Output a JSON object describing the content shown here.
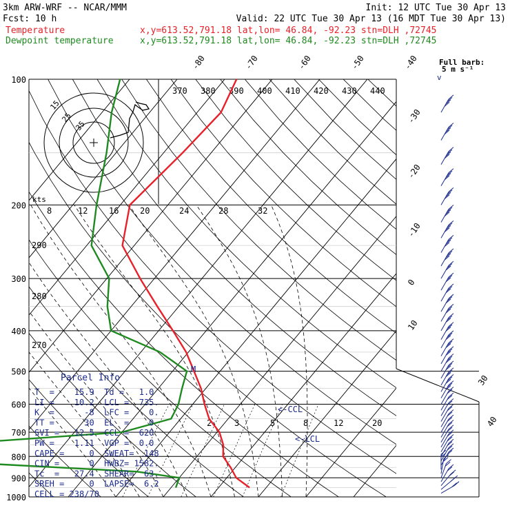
{
  "header": {
    "model": "3km ARW-WRF -- NCAR/MMM",
    "init": "Init: 12 UTC Tue 30 Apr 13",
    "fcst": "Fcst:   10 h",
    "valid": "Valid: 22 UTC Tue 30 Apr 13 (16 MDT Tue 30 Apr 13)",
    "temp_label": "Temperature",
    "temp_loc": "x,y=613.52,791.18   lat,lon= 46.84, -92.23  stn=DLH ,72745",
    "dew_label": "Dewpoint temperature",
    "dew_loc": "x,y=613.52,791.18   lat,lon= 46.84, -92.23  stn=DLH ,72745",
    "barb_note_1": "Full barb:",
    "barb_note_2": "5 m s⁻¹"
  },
  "colors": {
    "temperature": "#e8202a",
    "dewpoint": "#1f8a1f",
    "parcel_text": "#1a2a8a",
    "grid": "#000000"
  },
  "chart_data": {
    "type": "line",
    "pressure_levels": [
      1000,
      900,
      800,
      700,
      600,
      500,
      400,
      300,
      200,
      100
    ],
    "isotherms": [
      -80,
      -70,
      -60,
      -50,
      -40,
      -30,
      -20,
      -10,
      0,
      10,
      20,
      30,
      40
    ],
    "theta_labels": [
      370,
      380,
      390,
      400,
      410,
      420,
      430,
      440
    ],
    "theta_left_labels": [
      290,
      280,
      270
    ],
    "mixing_ratio_labels": [
      2,
      3,
      5,
      8,
      12,
      20
    ],
    "hodograph": {
      "units_label": "kts",
      "speed_ticks": [
        8,
        12,
        16,
        20,
        24,
        28,
        32
      ],
      "ring_labels": [
        15,
        25,
        35
      ]
    },
    "series": [
      {
        "name": "Temperature",
        "points": [
          {
            "p": 950,
            "t": 16.5
          },
          {
            "p": 900,
            "t": 12.0
          },
          {
            "p": 850,
            "t": 9.0
          },
          {
            "p": 800,
            "t": 5.5
          },
          {
            "p": 750,
            "t": 3.5
          },
          {
            "p": 700,
            "t": 0.5
          },
          {
            "p": 650,
            "t": -4.0
          },
          {
            "p": 600,
            "t": -7.5
          },
          {
            "p": 550,
            "t": -11.0
          },
          {
            "p": 500,
            "t": -15.5
          },
          {
            "p": 450,
            "t": -20.5
          },
          {
            "p": 400,
            "t": -27.0
          },
          {
            "p": 350,
            "t": -34.5
          },
          {
            "p": 300,
            "t": -43.0
          },
          {
            "p": 250,
            "t": -52.5
          },
          {
            "p": 200,
            "t": -58.0
          },
          {
            "p": 150,
            "t": -56.0
          },
          {
            "p": 120,
            "t": -55.0
          },
          {
            "p": 100,
            "t": -57.5
          }
        ]
      },
      {
        "name": "Dewpoint temperature",
        "points": [
          {
            "p": 950,
            "t": 1.0
          },
          {
            "p": 900,
            "t": 0.0
          },
          {
            "p": 870,
            "t": -10.0
          },
          {
            "p": 830,
            "t": -45.0
          },
          {
            "p": 800,
            "t": -75.0
          },
          {
            "p": 760,
            "t": -62.0
          },
          {
            "p": 700,
            "t": -20.0
          },
          {
            "p": 650,
            "t": -12.0
          },
          {
            "p": 600,
            "t": -13.0
          },
          {
            "p": 550,
            "t": -15.0
          },
          {
            "p": 500,
            "t": -17.0
          },
          {
            "p": 450,
            "t": -26.0
          },
          {
            "p": 400,
            "t": -40.0
          },
          {
            "p": 350,
            "t": -45.0
          },
          {
            "p": 300,
            "t": -49.5
          },
          {
            "p": 250,
            "t": -59.0
          },
          {
            "p": 200,
            "t": -65.0
          },
          {
            "p": 150,
            "t": -72.0
          },
          {
            "p": 120,
            "t": -78.0
          },
          {
            "p": 100,
            "t": -82.0
          }
        ]
      }
    ],
    "annotations": [
      "CCL",
      "LCL",
      "M"
    ]
  },
  "parcel_info": {
    "title": "Parcel Info",
    "rows": [
      "T  =    15.9  Td =   1.0",
      "LI =    10.2  LCL =  735.",
      "K  =      -8  LFC =    0.",
      "TT =      30  EL  =    0",
      "SVI =   12.5  CCL =  620",
      "PW =    1.11  VGP =  0.0",
      "CAPE =     0  SWEAT=  148",
      "CIN =      0  HWBZ= 1582.",
      "Tc  =   27.4  SHEAR=  63.",
      "SREH =     0  LAPSE=  6.2",
      "CELL = 238/70"
    ]
  }
}
